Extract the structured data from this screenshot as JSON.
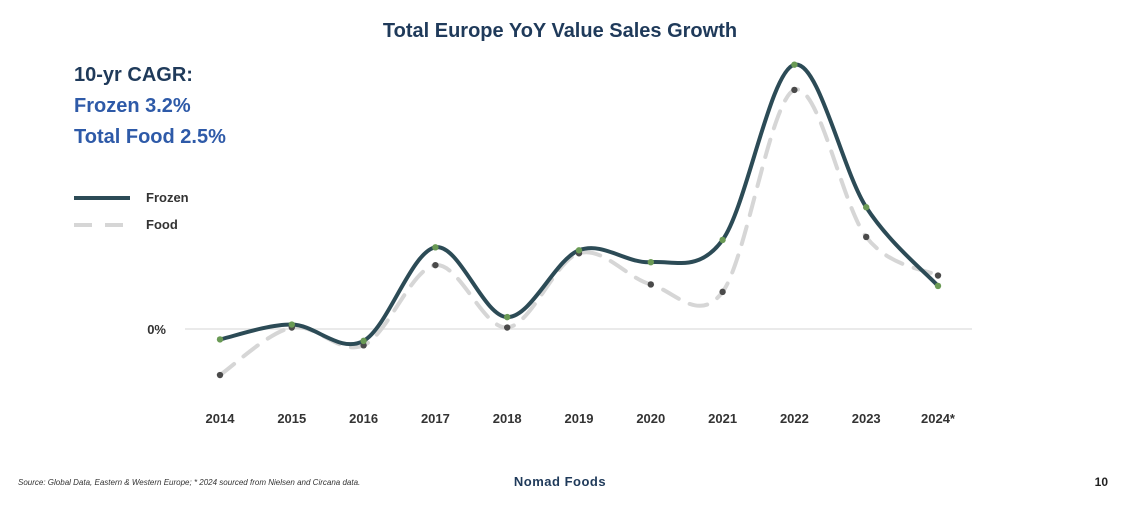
{
  "chart_data": {
    "type": "line",
    "title": "Total Europe YoY Value Sales Growth",
    "categories": [
      "2014",
      "2015",
      "2016",
      "2017",
      "2018",
      "2019",
      "2020",
      "2021",
      "2022",
      "2023",
      "2024*"
    ],
    "series": [
      {
        "name": "Frozen",
        "color": "#2c4b56",
        "marker_color": "#6a9a55",
        "values": [
          -0.7,
          0.3,
          -0.8,
          5.5,
          0.8,
          5.3,
          4.5,
          6.0,
          17.8,
          8.2,
          2.9
        ]
      },
      {
        "name": "Food",
        "color": "#d6d6d6",
        "marker_color": "#4a4a4a",
        "values": [
          -3.1,
          0.1,
          -1.1,
          4.3,
          0.1,
          5.1,
          3.0,
          2.5,
          16.1,
          6.2,
          3.6
        ]
      }
    ],
    "zero_label": "0%",
    "ylim": [
      -5,
      20
    ]
  },
  "cagr": {
    "heading": "10-yr CAGR:",
    "frozen": "Frozen 3.2%",
    "food": "Total Food 2.5%"
  },
  "legend": {
    "frozen": "Frozen",
    "food": "Food"
  },
  "footer": {
    "source": "Source: Global Data, Eastern & Western Europe; * 2024 sourced from Nielsen and Circana data.",
    "brand": "Nomad Foods",
    "page": "10"
  }
}
